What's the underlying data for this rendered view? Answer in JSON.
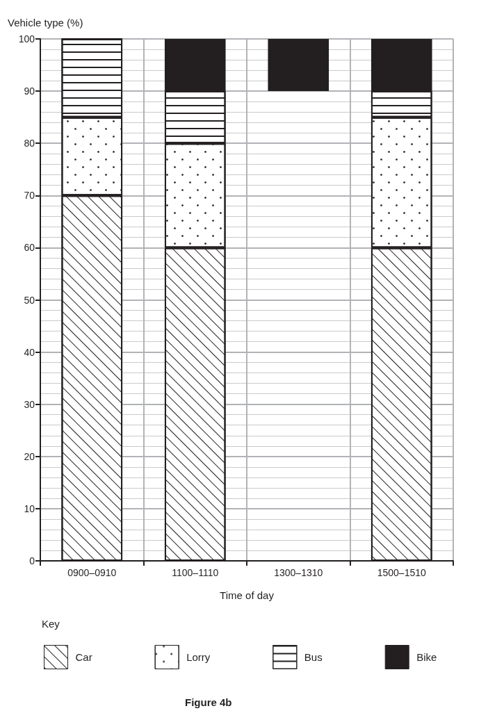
{
  "chart_data": {
    "type": "bar",
    "stacked": true,
    "xlabel": "Time of day",
    "ylabel": "Vehicle type (%)",
    "legend_title": "Key",
    "categories": [
      "0900–0910",
      "1100–1110",
      "1300–1310",
      "1500–1510"
    ],
    "series": [
      {
        "name": "Car",
        "color": "#ffffff",
        "values": [
          70,
          60,
          null,
          60
        ]
      },
      {
        "name": "Lorry",
        "color": "#ffffff",
        "values": [
          15,
          20,
          null,
          25
        ]
      },
      {
        "name": "Bus",
        "color": "#ffffff",
        "values": [
          15,
          10,
          null,
          5
        ]
      },
      {
        "name": "Bike",
        "color": "#231f20",
        "values": [
          0,
          10,
          10,
          10
        ],
        "base": [
          null,
          null,
          90,
          null
        ]
      }
    ],
    "ylim": [
      0,
      100
    ],
    "yticks": [
      0,
      10,
      20,
      30,
      40,
      50,
      60,
      70,
      80,
      90,
      100
    ],
    "grid": true,
    "legend": "bottom",
    "annotations": [
      "Figure 4b"
    ]
  }
}
